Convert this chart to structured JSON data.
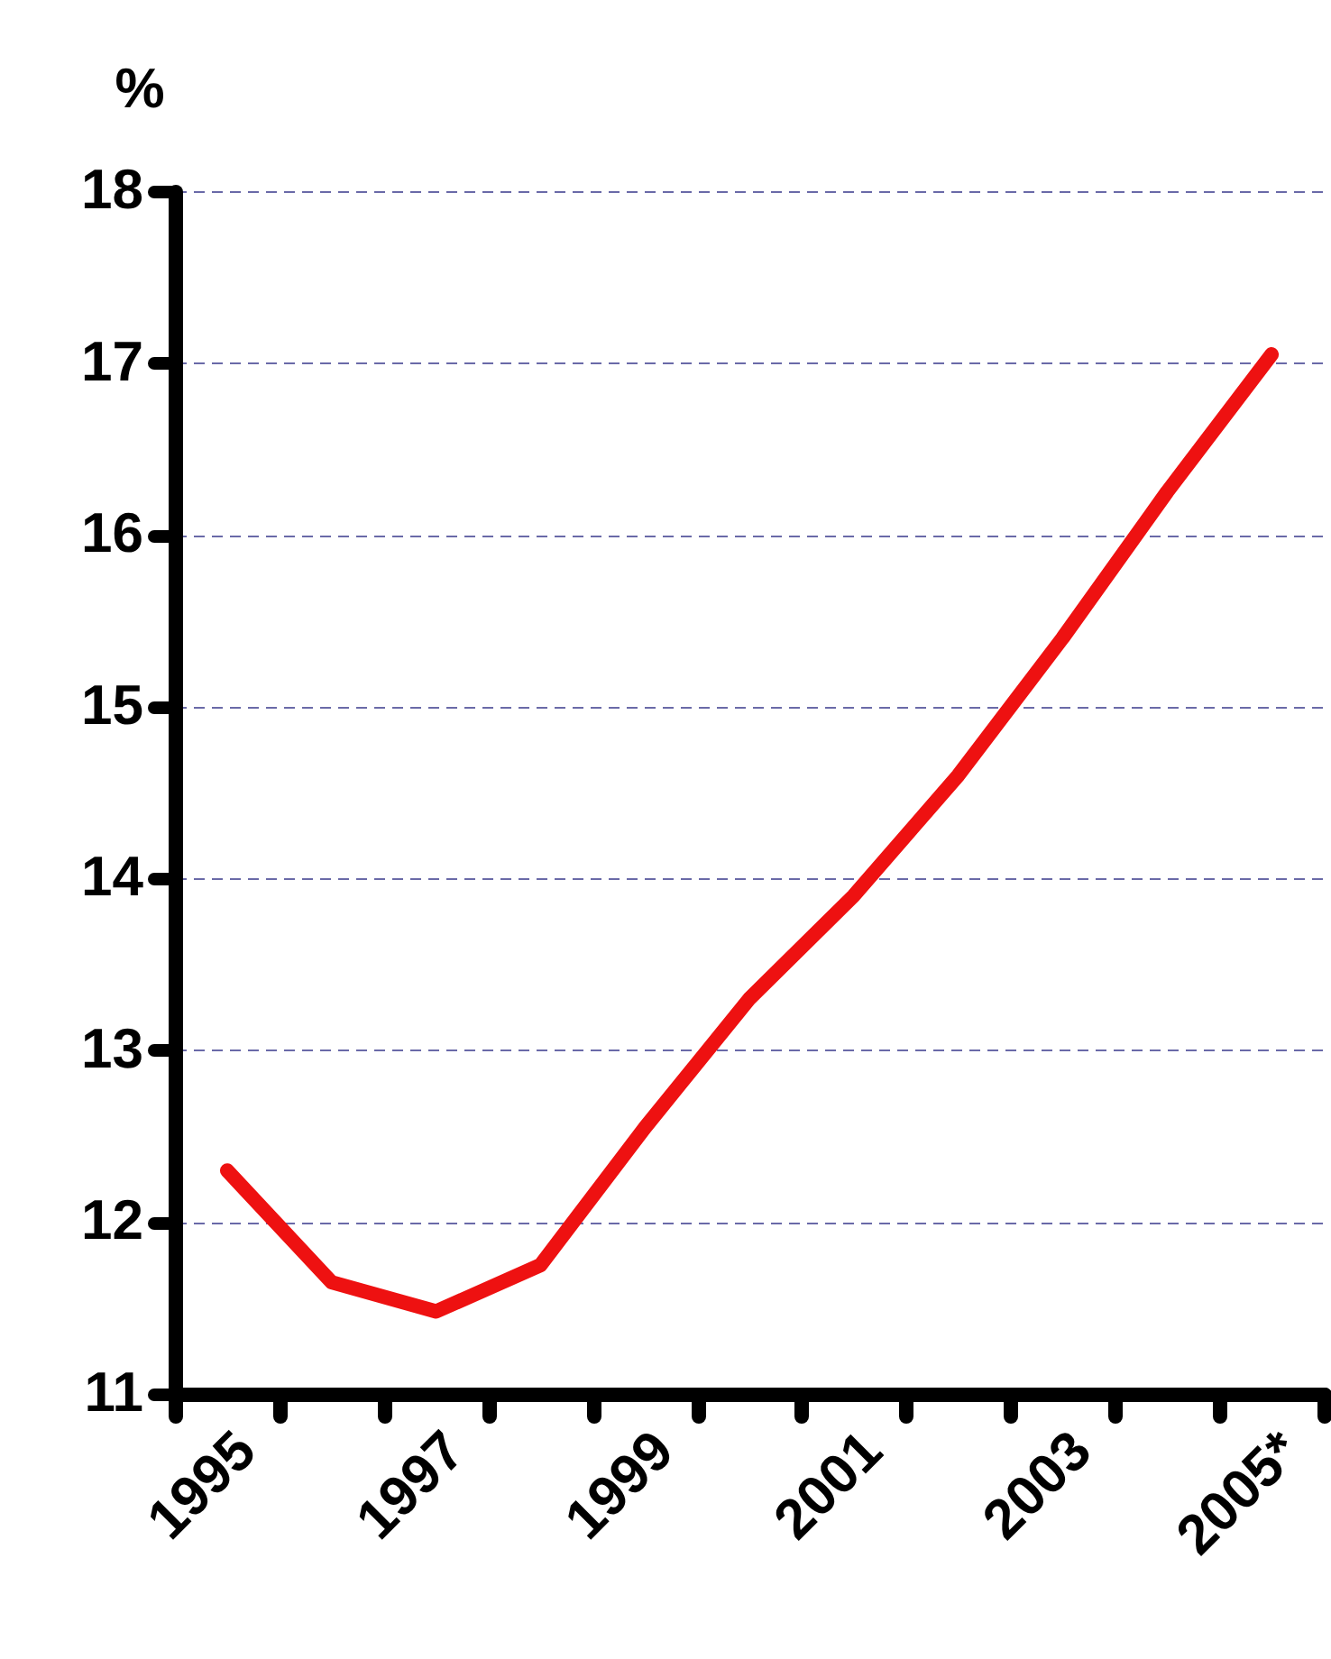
{
  "chart_data": {
    "type": "line",
    "ylabel": "%",
    "categories": [
      "1995",
      null,
      "1997",
      null,
      "1999",
      null,
      "2001",
      null,
      "2003",
      null,
      "2005*"
    ],
    "series": [
      {
        "color": "#ee1111",
        "values": [
          12.3,
          11.65,
          11.48,
          11.75,
          12.55,
          13.3,
          13.9,
          14.6,
          15.4,
          16.25,
          17.05
        ]
      }
    ],
    "ylim": [
      11,
      18
    ],
    "yticks": [
      11,
      12,
      13,
      14,
      15,
      16,
      17,
      18
    ],
    "grid": "y",
    "marker": "none",
    "line_style": "solid"
  }
}
